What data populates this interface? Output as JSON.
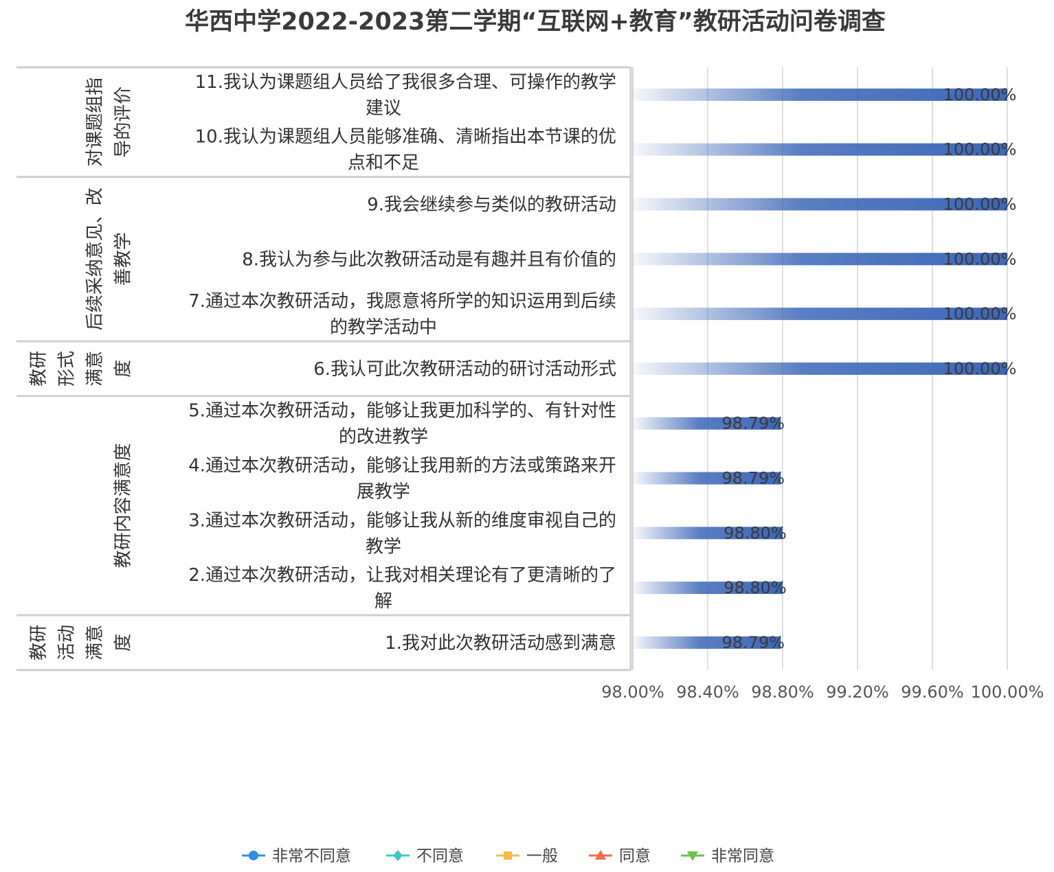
{
  "chart_data": {
    "type": "bar",
    "orientation": "horizontal",
    "title": "华西中学2022-2023第二学期“互联网+教育”教研活动问卷调查",
    "xlabel": "",
    "ylabel": "",
    "xlim": [
      0.98,
      1.0
    ],
    "x_ticks": [
      0.98,
      0.984,
      0.988,
      0.992,
      0.996,
      1.0
    ],
    "x_tick_labels": [
      "98.00%",
      "98.40%",
      "98.80%",
      "99.20%",
      "99.60%",
      "100.00%"
    ],
    "grid": true,
    "legend_position": "bottom",
    "groups": [
      {
        "name": "对课题组指导的评价",
        "lines": [
          "对课题组指",
          "导的评价"
        ],
        "items": [
          {
            "lines": [
              "11.我认为课题组人员给了我很多合理、可操作的教学",
              "建议"
            ],
            "value": 1.0,
            "label": "100.00%"
          },
          {
            "lines": [
              "10.我认为课题组人员能够准确、清晰指出本节课的优",
              "点和不足"
            ],
            "value": 1.0,
            "label": "100.00%"
          }
        ]
      },
      {
        "name": "后续采纳意见、改善教学",
        "lines": [
          "后续采纳意见、改",
          "善教学"
        ],
        "items": [
          {
            "lines": [
              "9.我会继续参与类似的教研活动"
            ],
            "value": 1.0,
            "label": "100.00%"
          },
          {
            "lines": [
              "8.我认为参与此次教研活动是有趣并且有价值的"
            ],
            "value": 1.0,
            "label": "100.00%"
          },
          {
            "lines": [
              "7.通过本次教研活动，我愿意将所学的知识运用到后续",
              "的教学活动中"
            ],
            "value": 1.0,
            "label": "100.00%"
          }
        ]
      },
      {
        "name": "教研形式满意度",
        "lines": [
          "教研",
          "形式",
          "满意",
          "度"
        ],
        "items": [
          {
            "lines": [
              "6.我认可此次教研活动的研讨活动形式"
            ],
            "value": 1.0,
            "label": "100.00%"
          }
        ]
      },
      {
        "name": "教研内容满意度",
        "lines": [
          "教研内容满意度"
        ],
        "items": [
          {
            "lines": [
              "5.通过本次教研活动，能够让我更加科学的、有针对性",
              "的改进教学"
            ],
            "value": 0.9879,
            "label": "98.79%"
          },
          {
            "lines": [
              "4.通过本次教研活动，能够让我用新的方法或策路来开",
              "展教学"
            ],
            "value": 0.9879,
            "label": "98.79%"
          },
          {
            "lines": [
              "3.通过本次教研活动，能够让我从新的维度审视自己的",
              "教学"
            ],
            "value": 0.988,
            "label": "98.80%"
          },
          {
            "lines": [
              "2.通过本次教研活动，让我对相关理论有了更清晰的了",
              "解"
            ],
            "value": 0.988,
            "label": "98.80%"
          }
        ]
      },
      {
        "name": "教研活动满意度",
        "lines": [
          "教研",
          "活动",
          "满意",
          "度"
        ],
        "items": [
          {
            "lines": [
              "1.我对此次教研活动感到满意"
            ],
            "value": 0.9879,
            "label": "98.79%"
          }
        ]
      }
    ],
    "legend": [
      {
        "name": "非常不同意",
        "color": "#2e8fe6",
        "marker": "circle"
      },
      {
        "name": "不同意",
        "color": "#3ec9c0",
        "marker": "diamond"
      },
      {
        "name": "一般",
        "color": "#f5b84a",
        "marker": "square"
      },
      {
        "name": "同意",
        "color": "#f26b4a",
        "marker": "triangle"
      },
      {
        "name": "非常同意",
        "color": "#6cc24a",
        "marker": "triangle-down"
      }
    ],
    "bar_color": "#3d67b8"
  }
}
